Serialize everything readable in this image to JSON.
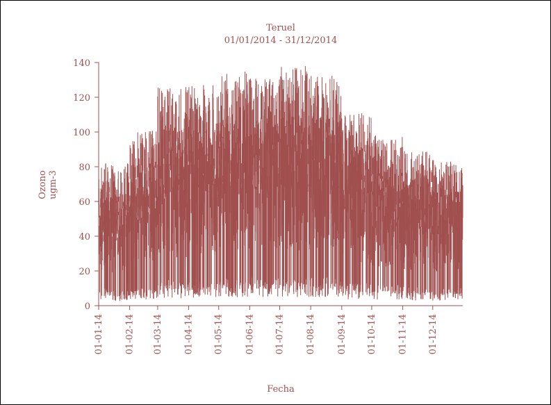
{
  "chart_data": {
    "type": "area",
    "title": "Teruel",
    "subtitle": "01/01/2014 - 31/12/2014",
    "xlabel": "Fecha",
    "ylabel_line1": "Ozono",
    "ylabel_line2": "ugm-3",
    "ylim": [
      0,
      140
    ],
    "yticks": [
      0,
      20,
      40,
      60,
      80,
      100,
      120,
      140
    ],
    "xlim": [
      "2014-01-01",
      "2014-12-31"
    ],
    "xtick_dates": [
      "2014-01-01",
      "2014-02-01",
      "2014-03-01",
      "2014-04-01",
      "2014-05-01",
      "2014-06-01",
      "2014-07-01",
      "2014-08-01",
      "2014-09-01",
      "2014-10-01",
      "2014-11-01",
      "2014-12-01"
    ],
    "xtick_labels": [
      "01-01-14",
      "01-02-14",
      "01-03-14",
      "01-04-14",
      "01-05-14",
      "01-06-14",
      "01-07-14",
      "01-08-14",
      "01-09-14",
      "01-10-14",
      "01-11-14",
      "01-12-14"
    ],
    "grid": false,
    "series": [
      {
        "color": "#a0504f",
        "monthly_envelope": [
          {
            "month": "2014-01",
            "min": 2,
            "max": 82
          },
          {
            "month": "2014-02",
            "min": 5,
            "max": 101
          },
          {
            "month": "2014-03",
            "min": 3,
            "max": 126
          },
          {
            "month": "2014-04",
            "min": 5,
            "max": 127
          },
          {
            "month": "2014-05",
            "min": 5,
            "max": 135
          },
          {
            "month": "2014-06",
            "min": 8,
            "max": 133
          },
          {
            "month": "2014-07",
            "min": 5,
            "max": 138
          },
          {
            "month": "2014-08",
            "min": 8,
            "max": 134
          },
          {
            "month": "2014-09",
            "min": 3,
            "max": 111
          },
          {
            "month": "2014-10",
            "min": 3,
            "max": 98
          },
          {
            "month": "2014-11",
            "min": 3,
            "max": 89
          },
          {
            "month": "2014-12",
            "min": 2,
            "max": 84
          }
        ]
      }
    ]
  }
}
